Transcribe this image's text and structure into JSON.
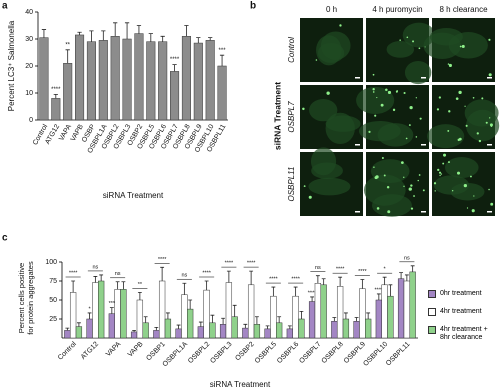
{
  "panel_labels": [
    "a",
    "b",
    "c"
  ],
  "chart_data": [
    {
      "type": "bar",
      "ylabel": "Percent LC3⁺ Salmonella",
      "xlabel": "siRNA Treatment",
      "categories": [
        "Control",
        "ATG12",
        "VAPA",
        "VAPB",
        "OSBP",
        "OSBPL1A",
        "OSBPL2",
        "OSBPL3",
        "OSBP2",
        "OSBPL5",
        "OSBPL6",
        "OSBPL7",
        "OSBPL8",
        "OSBPL9",
        "OSBPL10",
        "OSBPL11"
      ],
      "values": [
        30.5,
        8,
        21,
        31.5,
        29,
        29.5,
        31,
        30,
        32,
        29,
        29,
        18,
        31,
        28.5,
        29.5,
        20
      ],
      "errors": [
        3,
        1.5,
        5,
        1,
        4,
        3.5,
        5,
        6,
        3,
        3,
        2,
        2.5,
        4,
        2,
        1,
        4
      ],
      "significance": [
        null,
        "****",
        "**",
        null,
        null,
        null,
        null,
        null,
        null,
        null,
        null,
        "****",
        null,
        null,
        null,
        "***"
      ],
      "color": "#8c8c8c",
      "ylim": [
        0,
        40
      ],
      "yticks": [
        0,
        10,
        20,
        30,
        40
      ]
    },
    {
      "type": "grouped_bar",
      "ylabel": [
        "Percent cells positive",
        "for protein aggregates"
      ],
      "xlabel": "siRNA Treatment",
      "categories": [
        "Control",
        "ATG12",
        "VAPA",
        "VAPB",
        "OSBP1",
        "OSBPL1A",
        "OSBPL2",
        "OSBPL3",
        "OSBP2",
        "OSBPL5",
        "OSBPL6",
        "OSBPL7",
        "OSBPL8",
        "OSBPL9",
        "OSBPL10",
        "OSBPL11"
      ],
      "series": [
        {
          "name": "0hr treatment",
          "color": "#a386c4",
          "values": [
            10,
            25,
            32,
            8,
            10,
            12,
            15,
            18,
            13,
            12,
            12,
            48,
            22,
            22,
            50,
            78
          ],
          "errors": [
            3,
            8,
            8,
            2,
            4,
            5,
            6,
            8,
            5,
            4,
            4,
            6,
            5,
            5,
            8,
            8
          ],
          "significance": [
            null,
            "*",
            "***",
            null,
            null,
            null,
            null,
            null,
            null,
            null,
            null,
            "****",
            null,
            null,
            "****",
            null
          ]
        },
        {
          "name": "4hr treatment",
          "color": "#ffffff",
          "values": [
            60,
            73,
            64,
            50,
            75,
            57,
            63,
            73,
            70,
            55,
            55,
            72,
            68,
            65,
            70,
            75
          ],
          "errors": [
            15,
            8,
            10,
            10,
            18,
            15,
            12,
            15,
            18,
            12,
            12,
            10,
            12,
            12,
            10,
            8
          ]
        },
        {
          "name": "4hr treatment + 8hr clearance",
          "color": "#8fd18b",
          "values": [
            15,
            75,
            64,
            20,
            25,
            38,
            20,
            28,
            18,
            20,
            25,
            70,
            25,
            25,
            55,
            87
          ],
          "errors": [
            5,
            8,
            10,
            8,
            8,
            12,
            10,
            15,
            10,
            8,
            10,
            8,
            8,
            8,
            15,
            8
          ]
        }
      ],
      "significance": [
        "****",
        "ns",
        "ns",
        "**",
        "****",
        "ns",
        "****",
        "****",
        "****",
        "****",
        "****",
        "ns",
        "****",
        "****",
        "*",
        "ns"
      ],
      "ylim": [
        0,
        100
      ],
      "yticks": [
        25,
        50,
        75,
        100
      ]
    }
  ],
  "image_panel": {
    "columns": [
      "0 h",
      "4 h puromycin",
      "8 h clearance"
    ],
    "rows": [
      "Control",
      "OSBPL7",
      "OSBPL11"
    ],
    "axis_label": "siRNA Treatment"
  }
}
